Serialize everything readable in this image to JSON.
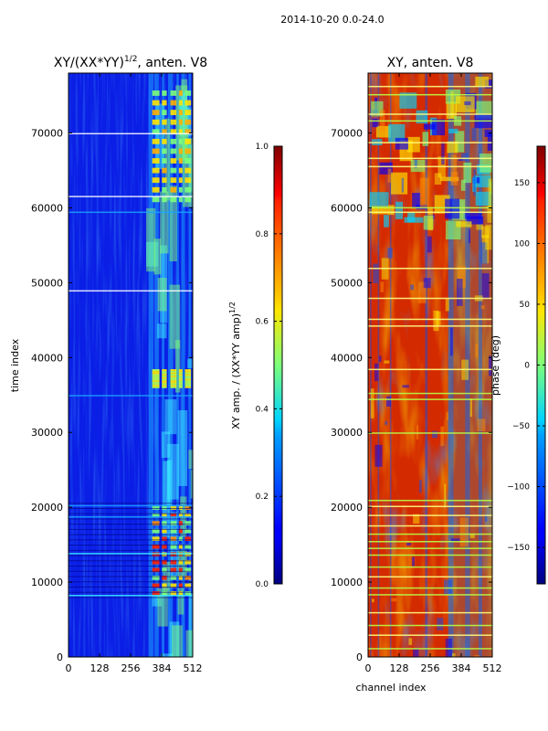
{
  "figure": {
    "suptitle": "2014-10-20 0.0-24.0"
  },
  "chart_data": [
    {
      "type": "heatmap",
      "title_main": "XY/(XX*YY)",
      "title_exp": "1/2",
      "title_tail": ", anten. V8",
      "xlabel": "",
      "ylabel": "time index",
      "x_range": [
        0,
        512
      ],
      "y_range": [
        0,
        78000
      ],
      "x_ticks": [
        0,
        128,
        256,
        384,
        512
      ],
      "y_ticks": [
        0,
        10000,
        20000,
        30000,
        40000,
        50000,
        60000,
        70000
      ],
      "colormap": "jet",
      "colorbar": {
        "label_main": "XY amp. / (XX*YY amp)",
        "label_exp": "1/2",
        "range": [
          0.0,
          1.0
        ],
        "ticks": [
          "0.0",
          "0.2",
          "0.4",
          "0.6",
          "0.8",
          "1.0"
        ]
      }
    },
    {
      "type": "heatmap",
      "title_main": "XY, anten. V8",
      "xlabel": "channel index",
      "ylabel": "",
      "x_range": [
        0,
        512
      ],
      "y_range": [
        0,
        78000
      ],
      "x_ticks": [
        0,
        128,
        256,
        384,
        512
      ],
      "y_ticks": [
        0,
        10000,
        20000,
        30000,
        40000,
        50000,
        60000,
        70000
      ],
      "colormap": "jet",
      "colorbar": {
        "label_main": "phase (deg)",
        "range": [
          -180,
          180
        ],
        "ticks": [
          "−150",
          "−100",
          "−50",
          "0",
          "50",
          "100",
          "150"
        ]
      }
    }
  ]
}
